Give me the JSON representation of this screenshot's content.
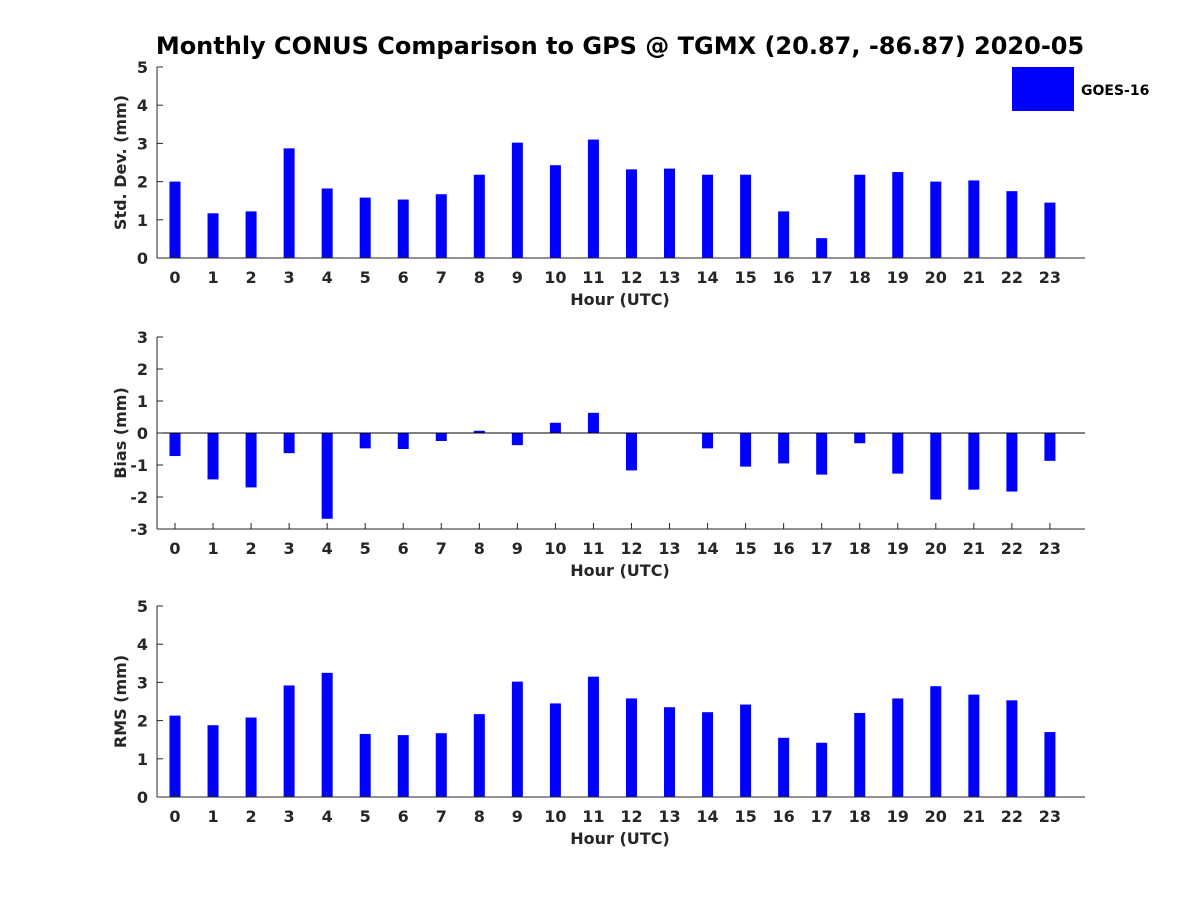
{
  "title": "Monthly CONUS Comparison to GPS @ TGMX (20.87, -86.87) 2020-05",
  "legend": {
    "label": "GOES-16"
  },
  "colors": {
    "bar": "#0000ff",
    "axis": "#262626"
  },
  "chart_data": [
    {
      "type": "bar",
      "id": "std",
      "ylabel": "Std. Dev. (mm)",
      "xlabel": "Hour (UTC)",
      "categories": [
        "0",
        "1",
        "2",
        "3",
        "4",
        "5",
        "6",
        "7",
        "8",
        "9",
        "10",
        "11",
        "12",
        "13",
        "14",
        "15",
        "16",
        "17",
        "18",
        "19",
        "20",
        "21",
        "22",
        "23"
      ],
      "yticks": [
        0,
        1,
        2,
        3,
        4,
        5
      ],
      "ylim": [
        0,
        5
      ],
      "series": [
        {
          "name": "GOES-16",
          "values": [
            2.0,
            1.17,
            1.22,
            2.87,
            1.82,
            1.58,
            1.53,
            1.67,
            2.18,
            3.02,
            2.43,
            3.1,
            2.32,
            2.34,
            2.18,
            2.18,
            1.22,
            0.52,
            2.18,
            2.25,
            2.0,
            2.03,
            1.75,
            1.45
          ]
        }
      ]
    },
    {
      "type": "bar",
      "id": "bias",
      "ylabel": "Bias (mm)",
      "xlabel": "Hour (UTC)",
      "categories": [
        "0",
        "1",
        "2",
        "3",
        "4",
        "5",
        "6",
        "7",
        "8",
        "9",
        "10",
        "11",
        "12",
        "13",
        "14",
        "15",
        "16",
        "17",
        "18",
        "19",
        "20",
        "21",
        "22",
        "23"
      ],
      "yticks": [
        -3,
        -2,
        -1,
        0,
        1,
        2,
        3
      ],
      "ylim": [
        -3,
        3
      ],
      "series": [
        {
          "name": "GOES-16",
          "values": [
            -0.72,
            -1.45,
            -1.7,
            -0.63,
            -2.68,
            -0.48,
            -0.5,
            -0.25,
            0.07,
            -0.38,
            0.32,
            0.63,
            -1.17,
            0.0,
            -0.48,
            -1.05,
            -0.95,
            -1.3,
            -0.32,
            -1.27,
            -2.08,
            -1.77,
            -1.83,
            -0.87
          ]
        }
      ]
    },
    {
      "type": "bar",
      "id": "rms",
      "ylabel": "RMS (mm)",
      "xlabel": "Hour (UTC)",
      "categories": [
        "0",
        "1",
        "2",
        "3",
        "4",
        "5",
        "6",
        "7",
        "8",
        "9",
        "10",
        "11",
        "12",
        "13",
        "14",
        "15",
        "16",
        "17",
        "18",
        "19",
        "20",
        "21",
        "22",
        "23"
      ],
      "yticks": [
        0,
        1,
        2,
        3,
        4,
        5
      ],
      "ylim": [
        0,
        5
      ],
      "series": [
        {
          "name": "GOES-16",
          "values": [
            2.13,
            1.88,
            2.08,
            2.92,
            3.25,
            1.65,
            1.62,
            1.67,
            2.17,
            3.02,
            2.45,
            3.15,
            2.58,
            2.35,
            2.22,
            2.42,
            1.55,
            1.42,
            2.2,
            2.58,
            2.9,
            2.68,
            2.53,
            1.7
          ]
        }
      ]
    }
  ]
}
